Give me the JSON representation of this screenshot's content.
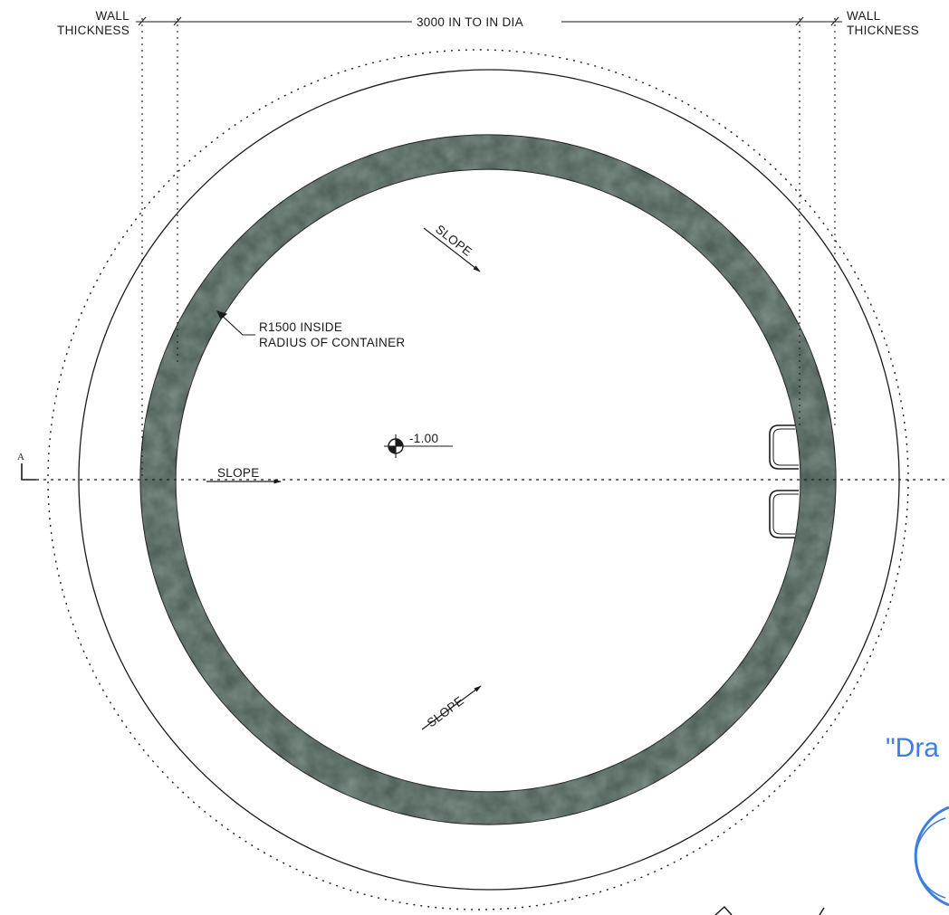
{
  "dimension": {
    "diameter_label": "3000 IN TO IN DIA",
    "wall_left_line1": "WALL",
    "wall_left_line2": "THICKNESS",
    "wall_right_line1": "WALL",
    "wall_right_line2": "THICKNESS"
  },
  "radius_note": {
    "line1": "R1500 INSIDE",
    "line2": "RADIUS OF CONTAINER"
  },
  "level": {
    "value": "-1.00"
  },
  "section_marker": {
    "letter": "A"
  },
  "slopes": {
    "top": "SLOPE",
    "middle": "SLOPE",
    "bottom": "SLOPE"
  },
  "stamp": {
    "text": "\"Dra"
  },
  "colors": {
    "line": "#1a1a1a",
    "wall_fill": "#4a5c55",
    "stamp": "#3d7ee0"
  }
}
